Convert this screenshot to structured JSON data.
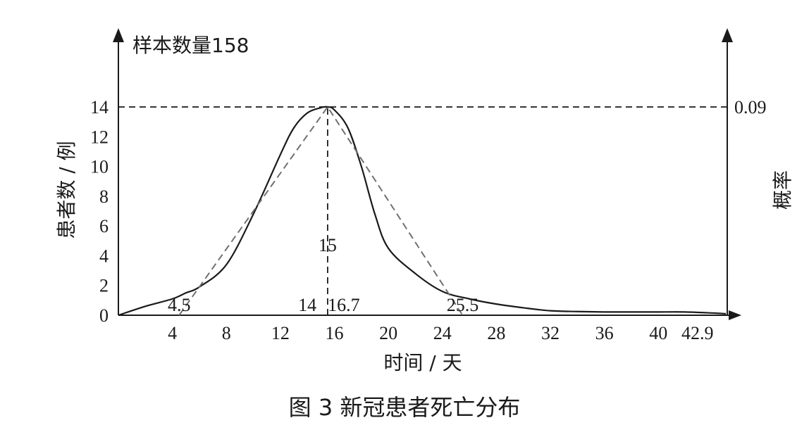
{
  "chart_data": {
    "type": "line",
    "title": "",
    "caption": "图 3    新冠患者死亡分布",
    "sample_label": "样本数量158",
    "xlabel": "时间 / 天",
    "ylabel": "患者数 / 例",
    "y2label": "概率",
    "y2_value_label": "0.09",
    "xlim": [
      0,
      45
    ],
    "ylim": [
      0,
      14
    ],
    "x_ticks": [
      4,
      8,
      12,
      16,
      20,
      24,
      28,
      32,
      36,
      40,
      42.9
    ],
    "y_ticks": [
      0,
      2,
      4,
      6,
      8,
      10,
      12,
      14
    ],
    "grid": false,
    "legend": "none",
    "series": [
      {
        "style": "solid",
        "x": [
          0,
          2,
          4,
          5,
          6,
          8,
          10,
          12,
          13,
          14,
          15,
          15.5,
          16,
          17,
          18,
          19,
          20,
          22,
          24,
          26,
          28,
          30,
          32,
          34,
          36,
          38,
          40,
          42,
          44,
          45
        ],
        "y": [
          0,
          0.6,
          1.1,
          1.5,
          1.9,
          3.4,
          6.8,
          10.8,
          12.6,
          13.6,
          13.95,
          14,
          13.8,
          12.6,
          10.0,
          6.8,
          4.5,
          2.8,
          1.6,
          1.1,
          0.75,
          0.5,
          0.3,
          0.25,
          0.22,
          0.22,
          0.22,
          0.22,
          0.15,
          0.1
        ]
      },
      {
        "style": "dashed",
        "x": [
          4.5,
          15.5,
          25.5
        ],
        "y": [
          0,
          14,
          0
        ]
      }
    ],
    "annotations": [
      {
        "text": "4.5",
        "x": 4.5,
        "y": 0
      },
      {
        "text": "14",
        "x": 14,
        "y": 0
      },
      {
        "text": "16.7",
        "x": 16.7,
        "y": 0
      },
      {
        "text": "25.5",
        "x": 25.5,
        "y": 0
      },
      {
        "text": "15",
        "x": 15.5,
        "y": 4.5
      }
    ],
    "reference_lines": {
      "horizontal_y": 14,
      "vertical_x": 15.5
    }
  }
}
